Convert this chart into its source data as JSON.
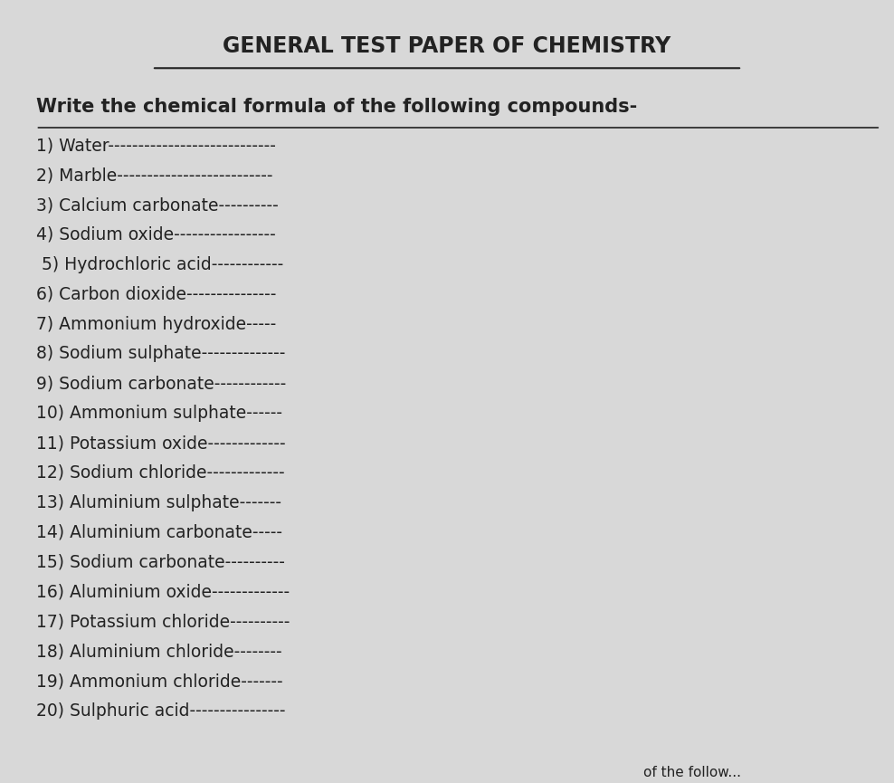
{
  "title": "GENERAL TEST PAPER OF CHEMISTRY",
  "subtitle": "Write the chemical formula of the following compounds-",
  "items": [
    "1) Water----------------------------",
    "2) Marble--------------------------",
    "3) Calcium carbonate----------",
    "4) Sodium oxide-----------------",
    "·5) Hydrochloric acid------------",
    "6) Carbon dioxide---------------",
    "7) Ammonium hydroxide-----",
    "8) Sodium sulphate--------------",
    "9) Sodium carbonate------------",
    "10) Ammonium sulphate------",
    "11) Potassium oxide-------------",
    "12) Sodium chloride-------------",
    "13) Aluminium sulphate-------",
    "14) Aluminium carbonate-----",
    "15) Sodium carbonate----------",
    "16) Aluminium oxide-------------",
    "17) Potassium chloride----------",
    "18) Aluminium chloride--------",
    "19) Ammonium chloride-------",
    "20) Sulphuric acid----------------"
  ],
  "bottom_text": "of the follow...",
  "bg_color": "#d8d8d8",
  "paper_color": "#efefef",
  "title_fontsize": 17,
  "subtitle_fontsize": 15,
  "item_fontsize": 13.5,
  "text_color": "#222222"
}
